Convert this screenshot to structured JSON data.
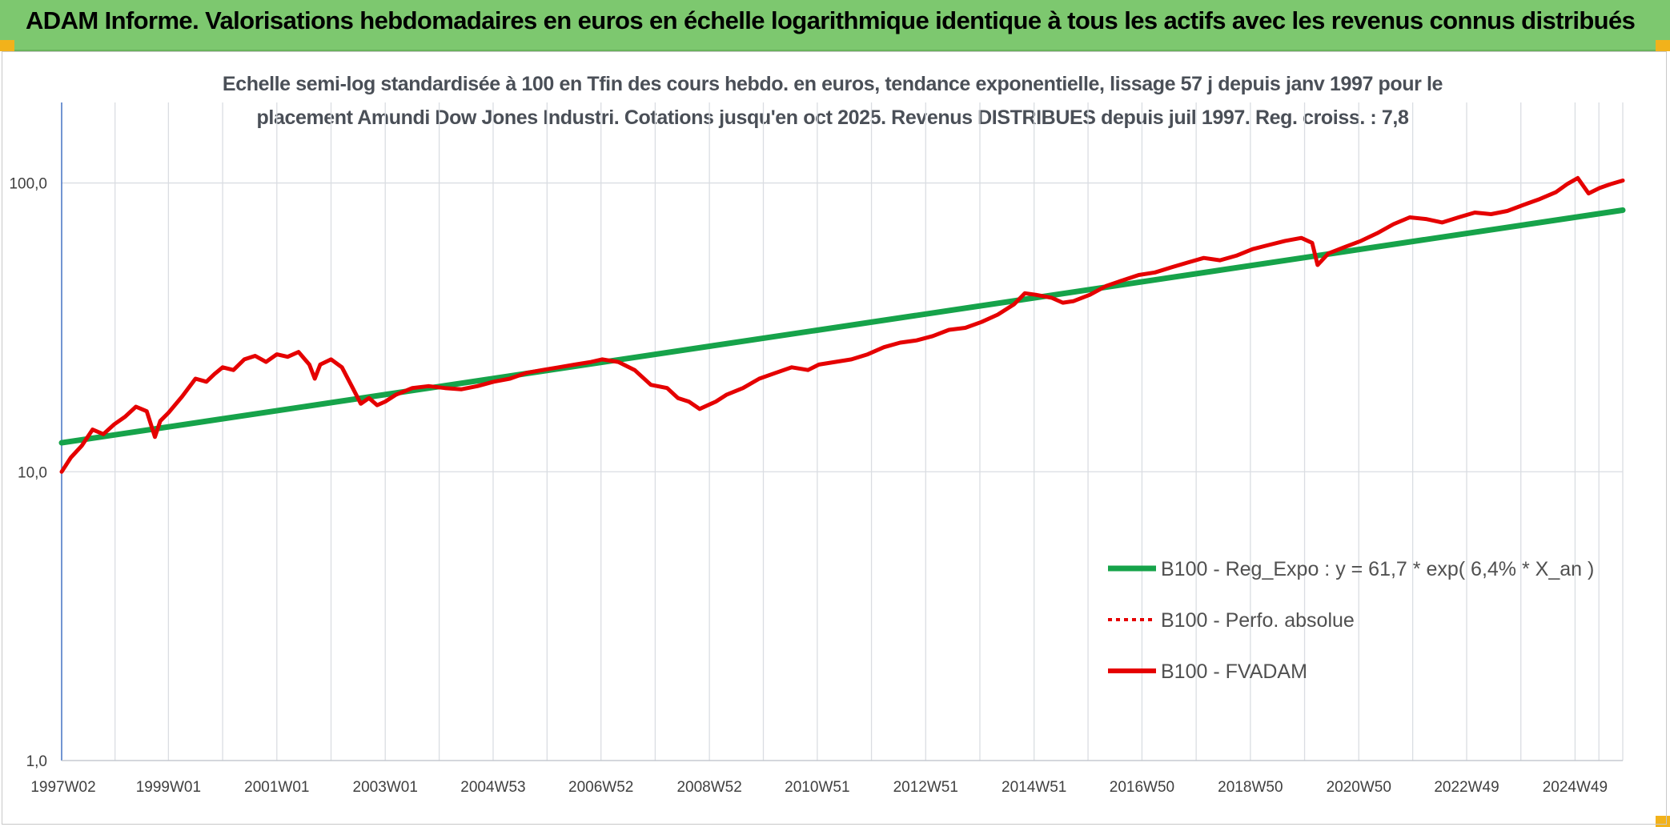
{
  "header": {
    "title": "ADAM Informe. Valorisations hebdomadaires en euros en échelle logarithmique identique à tous les actifs avec les revenus connus distribués"
  },
  "chart_data": {
    "type": "line",
    "title_lines": [
      "Echelle semi-log standardisée à 100 en Tfin des cours hebdo. en euros, tendance exponentielle, lissage 57 j depuis janv 1997 pour le",
      "placement Amundi Dow Jones Industri. Cotations jusqu'en oct 2025. Revenus DISTRIBUES depuis juil 1997. Reg. croiss. : 7,8"
    ],
    "y_scale": "log",
    "ylim": [
      1,
      190
    ],
    "y_ticks": [
      {
        "value": 1,
        "label": "1,0"
      },
      {
        "value": 10,
        "label": "10,0"
      },
      {
        "value": 100,
        "label": "100,0"
      }
    ],
    "xlim": [
      1997.03,
      2025.83
    ],
    "x_ticks": [
      {
        "value": 1997.03,
        "label": "1997W02"
      },
      {
        "value": 1999.0,
        "label": "1999W01"
      },
      {
        "value": 2001.0,
        "label": "2001W01"
      },
      {
        "value": 2003.0,
        "label": "2003W01"
      },
      {
        "value": 2004.99,
        "label": "2004W53"
      },
      {
        "value": 2006.98,
        "label": "2006W52"
      },
      {
        "value": 2008.98,
        "label": "2008W52"
      },
      {
        "value": 2010.97,
        "label": "2010W51"
      },
      {
        "value": 2012.97,
        "label": "2012W51"
      },
      {
        "value": 2014.97,
        "label": "2014W51"
      },
      {
        "value": 2016.96,
        "label": "2016W50"
      },
      {
        "value": 2018.96,
        "label": "2018W50"
      },
      {
        "value": 2020.96,
        "label": "2020W50"
      },
      {
        "value": 2022.95,
        "label": "2022W49"
      },
      {
        "value": 2024.95,
        "label": "2024W49"
      }
    ],
    "grid": {
      "vertical": true,
      "horizontal": true
    },
    "legend_position": "bottom-right",
    "series": [
      {
        "name": "B100 - Reg_Expo : y = 61,7 * exp( 6,4% *  X_an )",
        "color": "#16a34a",
        "style": "solid",
        "x": [
          1997.03,
          2025.83
        ],
        "y": [
          12.6,
          80.5
        ]
      },
      {
        "name": "B100 - Perfo. absolue",
        "color": "#e50000",
        "style": "dotted",
        "x": [],
        "y": []
      },
      {
        "name": "B100 - FVADAM",
        "color": "#e50000",
        "style": "solid",
        "x": [
          1997.03,
          1997.2,
          1997.4,
          1997.6,
          1997.8,
          1998.0,
          1998.2,
          1998.4,
          1998.6,
          1998.75,
          1998.85,
          1999.0,
          1999.25,
          1999.5,
          1999.7,
          1999.85,
          2000.0,
          2000.2,
          2000.4,
          2000.6,
          2000.8,
          2001.0,
          2001.2,
          2001.4,
          2001.6,
          2001.7,
          2001.8,
          2002.0,
          2002.2,
          2002.4,
          2002.55,
          2002.7,
          2002.85,
          2003.0,
          2003.2,
          2003.5,
          2003.8,
          2004.1,
          2004.4,
          2004.7,
          2005.0,
          2005.3,
          2005.6,
          2005.9,
          2006.2,
          2006.5,
          2006.8,
          2007.0,
          2007.3,
          2007.6,
          2007.9,
          2008.2,
          2008.4,
          2008.6,
          2008.8,
          2009.1,
          2009.3,
          2009.6,
          2009.9,
          2010.2,
          2010.5,
          2010.8,
          2011.0,
          2011.3,
          2011.6,
          2011.9,
          2012.2,
          2012.5,
          2012.8,
          2013.1,
          2013.4,
          2013.7,
          2014.0,
          2014.3,
          2014.6,
          2014.8,
          2015.0,
          2015.3,
          2015.5,
          2015.7,
          2016.0,
          2016.3,
          2016.6,
          2016.9,
          2017.2,
          2017.5,
          2017.8,
          2018.1,
          2018.4,
          2018.7,
          2019.0,
          2019.3,
          2019.6,
          2019.9,
          2020.1,
          2020.2,
          2020.4,
          2020.7,
          2021.0,
          2021.3,
          2021.6,
          2021.9,
          2022.2,
          2022.5,
          2022.8,
          2023.1,
          2023.4,
          2023.7,
          2024.0,
          2024.3,
          2024.6,
          2024.8,
          2025.0,
          2025.2,
          2025.4,
          2025.6,
          2025.83
        ],
        "y": [
          10.0,
          11.2,
          12.3,
          14.0,
          13.5,
          14.6,
          15.5,
          16.8,
          16.2,
          13.2,
          15.0,
          16.0,
          18.2,
          21.0,
          20.5,
          21.8,
          23.0,
          22.5,
          24.5,
          25.2,
          24.0,
          25.5,
          25.0,
          26.0,
          23.5,
          21.0,
          23.5,
          24.5,
          23.0,
          19.5,
          17.2,
          18.0,
          17.0,
          17.5,
          18.5,
          19.5,
          19.8,
          19.5,
          19.3,
          19.8,
          20.5,
          21.0,
          22.0,
          22.5,
          23.0,
          23.5,
          24.0,
          24.5,
          24.0,
          22.5,
          20.0,
          19.5,
          18.0,
          17.5,
          16.5,
          17.5,
          18.5,
          19.5,
          21.0,
          22.0,
          23.0,
          22.5,
          23.5,
          24.0,
          24.5,
          25.5,
          27.0,
          28.0,
          28.5,
          29.5,
          31.0,
          31.5,
          33.0,
          35.0,
          38.0,
          41.5,
          41.0,
          40.0,
          38.5,
          39.0,
          41.0,
          44.0,
          46.0,
          48.0,
          49.0,
          51.0,
          53.0,
          55.0,
          54.0,
          56.0,
          59.0,
          61.0,
          63.0,
          64.5,
          62.0,
          52.0,
          57.0,
          60.0,
          63.0,
          67.0,
          72.0,
          76.0,
          75.0,
          73.0,
          76.0,
          79.0,
          78.0,
          80.0,
          84.0,
          88.0,
          93.0,
          99.0,
          104.0,
          92.0,
          96.0,
          99.0,
          102.0
        ]
      }
    ]
  }
}
